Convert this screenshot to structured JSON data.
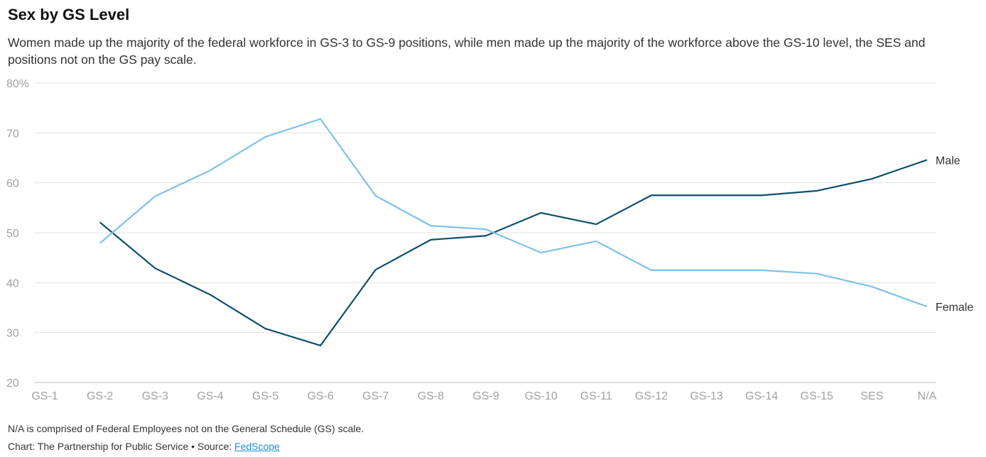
{
  "chart_data": {
    "type": "line",
    "title": "Sex by GS Level",
    "subtitle": "Women made up the majority of the federal workforce in GS-3 to GS-9 positions, while men made up the majority of the workforce above the GS-10 level, the SES and positions not on the GS pay scale.",
    "categories": [
      "GS-1",
      "GS-2",
      "GS-3",
      "GS-4",
      "GS-5",
      "GS-6",
      "GS-7",
      "GS-8",
      "GS-9",
      "GS-10",
      "GS-11",
      "GS-12",
      "GS-13",
      "GS-14",
      "GS-15",
      "SES",
      "N/A"
    ],
    "ylim": [
      20,
      80
    ],
    "yticks": [
      20,
      30,
      40,
      50,
      60,
      70,
      80
    ],
    "ytick_labels": [
      "20",
      "30",
      "40",
      "50",
      "60",
      "70",
      "80%"
    ],
    "grid": true,
    "legend": "inline-right",
    "series": [
      {
        "name": "Male",
        "color": "#0d4f6b",
        "values": [
          null,
          52.1,
          42.9,
          37.6,
          30.8,
          27.4,
          42.6,
          48.6,
          49.4,
          54.0,
          51.7,
          57.5,
          57.5,
          57.5,
          58.4,
          60.8,
          64.6
        ]
      },
      {
        "name": "Female",
        "color": "#7ec1e9",
        "values": [
          null,
          47.9,
          57.3,
          62.5,
          69.2,
          72.8,
          57.4,
          51.4,
          50.7,
          46.0,
          48.3,
          42.5,
          42.5,
          42.5,
          41.8,
          39.2,
          35.2
        ]
      }
    ]
  },
  "footer": {
    "note": "N/A is comprised of Federal Employees not on the General Schedule (GS) scale.",
    "credit_prefix": "Chart: The Partnership for Public Service • Source: ",
    "source_link": "FedScope"
  }
}
